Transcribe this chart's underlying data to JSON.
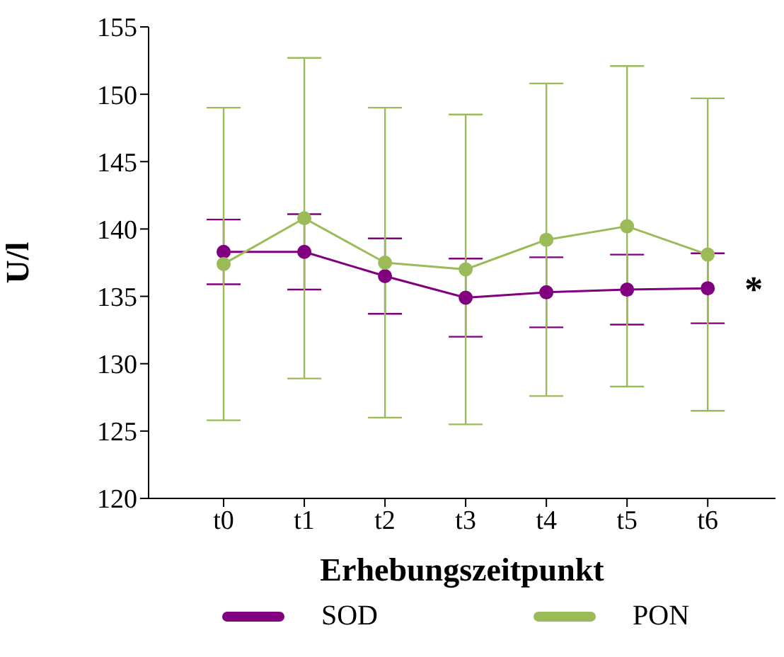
{
  "chart_data": {
    "type": "line",
    "xlabel": "Erhebungszeitpunkt",
    "ylabel": "U/l",
    "categories": [
      "t0",
      "t1",
      "t2",
      "t3",
      "t4",
      "t5",
      "t6"
    ],
    "series": [
      {
        "name": "SOD",
        "color": "#800080",
        "values": [
          138.3,
          138.3,
          136.5,
          134.9,
          135.3,
          135.5,
          135.6
        ],
        "errors": [
          2.4,
          2.8,
          2.8,
          2.9,
          2.6,
          2.6,
          2.6
        ]
      },
      {
        "name": "PON",
        "color": "#9bbb59",
        "values": [
          137.4,
          140.8,
          137.5,
          137.0,
          139.2,
          140.2,
          138.1
        ],
        "errors": [
          11.6,
          11.9,
          11.5,
          11.5,
          11.6,
          11.9,
          11.6
        ]
      }
    ],
    "ylim": [
      120,
      155
    ],
    "yticks": [
      120,
      125,
      130,
      135,
      140,
      145,
      150,
      155
    ],
    "grid": false,
    "legend": "bottom",
    "marker": "circle",
    "line_style": "solid",
    "annotations": [
      {
        "text": "*",
        "x": "t6",
        "y": 135.6
      }
    ]
  }
}
